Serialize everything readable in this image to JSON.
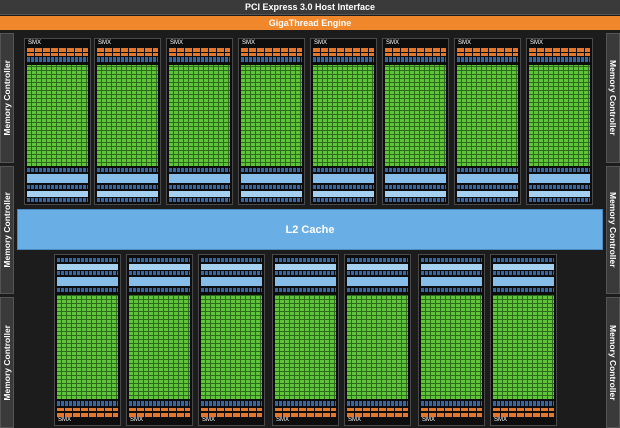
{
  "header": {
    "host_interface": "PCI Express 3.0 Host Interface",
    "engine": "GigaThread Engine"
  },
  "memory_controller_label": "Memory Controller",
  "cache": {
    "label": "L2 Cache"
  },
  "smx_label": "SMX",
  "colors": {
    "background": "#1c1c1c",
    "engine": "#f0872b",
    "cores": "#5fc43a",
    "cache": "#6aaee6",
    "scheduler": "#e4772a",
    "register": "#3267a8"
  }
}
